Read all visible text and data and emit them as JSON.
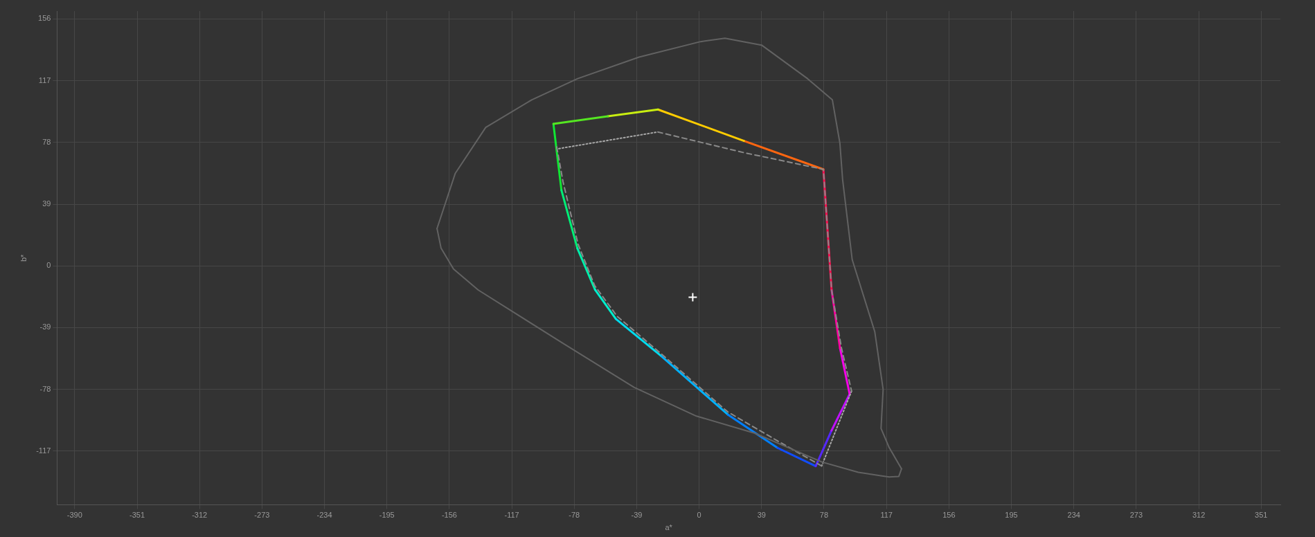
{
  "chart_data": {
    "type": "line",
    "xlabel": "a*",
    "ylabel": "b*",
    "xlim": [
      -401,
      363
    ],
    "ylim": [
      -151,
      161
    ],
    "xticks": [
      -390,
      -351,
      -312,
      -273,
      -234,
      -195,
      -156,
      -117,
      -78,
      -39,
      0,
      39,
      78,
      117,
      156,
      195,
      234,
      273,
      312,
      351
    ],
    "yticks": [
      -117,
      -78,
      -39,
      0,
      39,
      78,
      117,
      156
    ],
    "grid": true,
    "series": [
      {
        "color": "#626262",
        "line_style": "solid",
        "marker": "none",
        "x": [
          -163.7,
          -152.3,
          -133.3,
          -104.6,
          -75.9,
          -37.5,
          0.9,
          16.1,
          39.0,
          67.7,
          83.2,
          87.9,
          89.6,
          95.6,
          109.7,
          114.9,
          113.6,
          118.7,
          126.4
        ],
        "values": [
          23.6,
          58.5,
          87.5,
          104.9,
          118.3,
          131.9,
          141.7,
          143.8,
          139.5,
          118.3,
          104.9,
          77.6,
          54.6,
          3.9,
          -41.6,
          -78.0,
          -102.7,
          -114.8,
          -128.2
        ]
      },
      {
        "color": "#626262",
        "line_style": "solid",
        "marker": "none",
        "x": [
          126.4,
          124.7,
          118.7,
          99.4,
          76.7,
          34.7,
          -1.7,
          -40.7,
          -85.7,
          -138.0,
          -153.4,
          -161.2,
          -163.7
        ],
        "values": [
          -128.2,
          -133.0,
          -133.4,
          -130.4,
          -123.9,
          -105.7,
          -94.9,
          -76.7,
          -48.5,
          -15.2,
          -2.0,
          11.3,
          23.6
        ]
      },
      {
        "color": "#8a8a8a",
        "line_style": "dashed",
        "marker": "none",
        "x": [
          -25.8,
          28.2,
          77.6,
          82.7,
          88.9,
          95.2,
          null,
          76.5,
          49,
          17.8,
          -23.7,
          -51.2,
          -65.2,
          -75.6,
          -85,
          -89.2
        ],
        "values": [
          84.6,
          71.5,
          61,
          -15,
          -51.9,
          -79.1,
          null,
          -126.4,
          -110.6,
          -92.2,
          -55.5,
          -31.9,
          -12.5,
          13.7,
          53.1,
          76.7
        ]
      },
      {
        "color": "#a8a8a8",
        "line_style": "dotted",
        "marker": "none",
        "x": [
          95.2,
          76.5,
          null,
          -87.6,
          -25.8
        ],
        "values": [
          -79.1,
          -126.4,
          null,
          74.1,
          84.6
        ]
      },
      {
        "color": "#55e622",
        "line_style": "solid",
        "marker": "none",
        "x": [
          -91,
          -57
        ],
        "values": [
          89.7,
          94.5
        ]
      },
      {
        "color": "#c8ee11",
        "line_style": "solid",
        "marker": "none",
        "x": [
          -57,
          -25.7
        ],
        "values": [
          94.5,
          98.8
        ]
      },
      {
        "color": "#ffcc00",
        "line_style": "solid",
        "marker": "none",
        "x": [
          -25.7,
          28
        ],
        "values": [
          98.8,
          79
        ]
      },
      {
        "color": "#ff6610",
        "line_style": "solid",
        "marker": "none",
        "x": [
          28,
          77.6
        ],
        "values": [
          79,
          61
        ]
      },
      {
        "color": "#ff0d50",
        "line_style": "solid",
        "marker": "none",
        "x": [
          77.6,
          82.7
        ],
        "values": [
          61,
          -15
        ]
      },
      {
        "color": "#ff00a0",
        "line_style": "solid",
        "marker": "none",
        "x": [
          82.7,
          88
        ],
        "values": [
          -15,
          -52
        ]
      },
      {
        "color": "#f500e8",
        "line_style": "solid",
        "marker": "none",
        "x": [
          88,
          94
        ],
        "values": [
          -52,
          -81
        ]
      },
      {
        "color": "#c011ff",
        "line_style": "solid",
        "marker": "none",
        "x": [
          94,
          82.7
        ],
        "values": [
          -81,
          -104
        ]
      },
      {
        "color": "#5528ff",
        "line_style": "solid",
        "marker": "none",
        "x": [
          82.7,
          72.8
        ],
        "values": [
          -104,
          -126.5
        ]
      },
      {
        "color": "#114dff",
        "line_style": "solid",
        "marker": "none",
        "x": [
          72.8,
          49
        ],
        "values": [
          -126.5,
          -115
        ]
      },
      {
        "color": "#0080ff",
        "line_style": "solid",
        "marker": "none",
        "x": [
          49,
          18
        ],
        "values": [
          -115,
          -94
        ]
      },
      {
        "color": "#00b2ff",
        "line_style": "solid",
        "marker": "none",
        "x": [
          18,
          -23.6
        ],
        "values": [
          -94,
          -57
        ]
      },
      {
        "color": "#00dcee",
        "line_style": "solid",
        "marker": "none",
        "x": [
          -23.6,
          -52
        ],
        "values": [
          -57,
          -33.5
        ]
      },
      {
        "color": "#00eecc",
        "line_style": "solid",
        "marker": "none",
        "x": [
          -52,
          -65
        ],
        "values": [
          -33.5,
          -15
        ]
      },
      {
        "color": "#00eeaa",
        "line_style": "solid",
        "marker": "none",
        "x": [
          -65,
          -76
        ],
        "values": [
          -15,
          11
        ]
      },
      {
        "color": "#00ee77",
        "line_style": "solid",
        "marker": "none",
        "x": [
          -76,
          -86
        ],
        "values": [
          11,
          47.8
        ]
      },
      {
        "color": "#11e633",
        "line_style": "solid",
        "marker": "none",
        "x": [
          -86,
          -91
        ],
        "values": [
          47.8,
          89.7
        ]
      },
      {
        "type": "scatter",
        "color": "#ffffff",
        "marker": "cross",
        "x": [
          -4.0
        ],
        "values": [
          -19.8
        ]
      }
    ]
  }
}
